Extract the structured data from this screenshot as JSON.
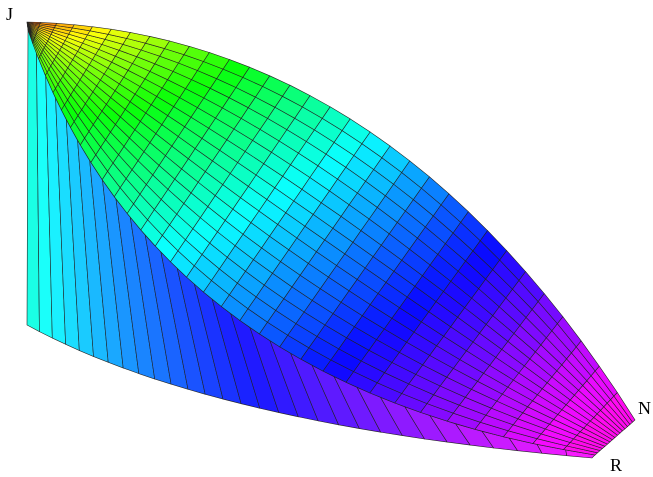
{
  "labels": {
    "top_left": "J",
    "right": "N",
    "bottom_right": "R"
  }
}
